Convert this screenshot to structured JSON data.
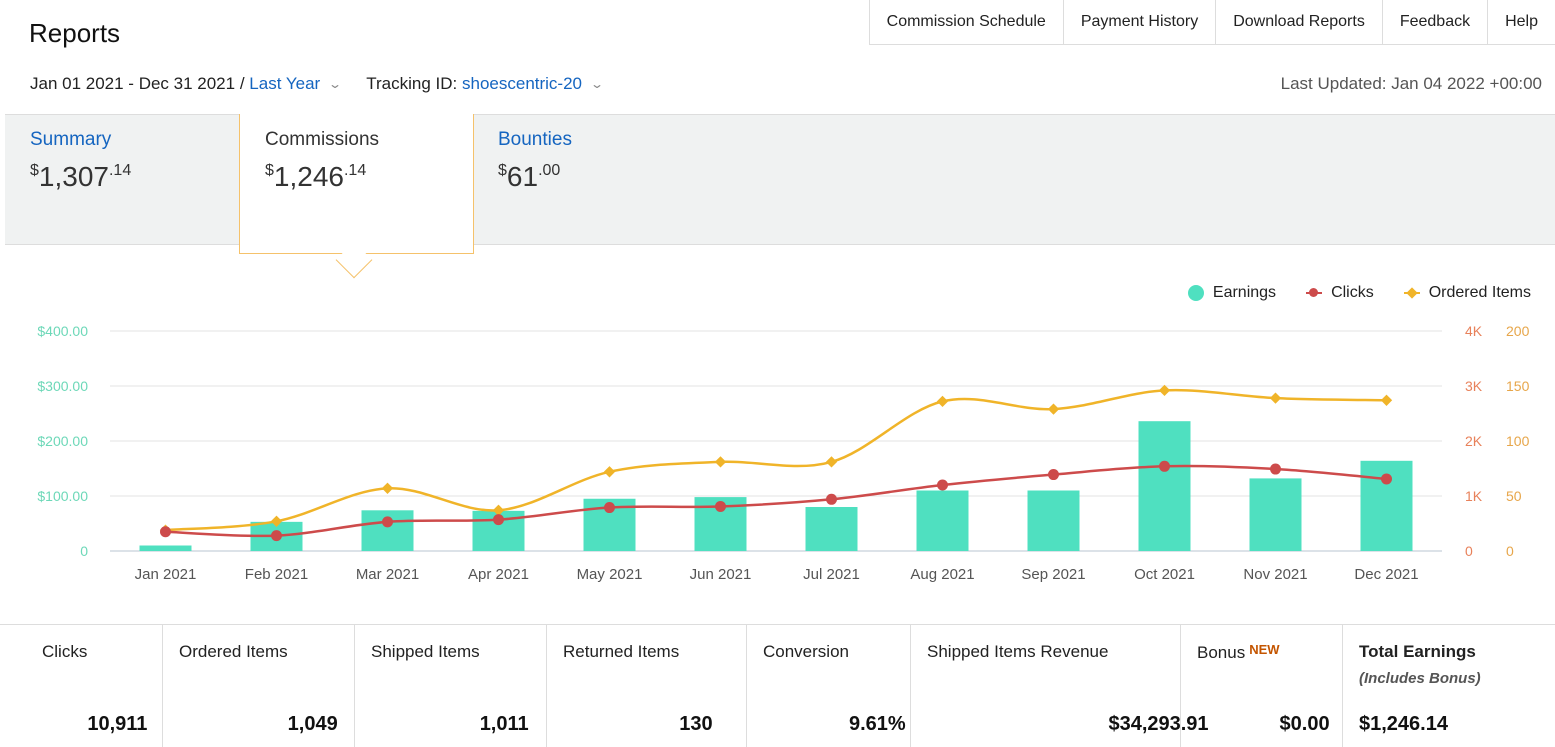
{
  "header": {
    "title": "Reports",
    "nav": [
      "Commission Schedule",
      "Payment History",
      "Download Reports",
      "Feedback",
      "Help"
    ],
    "date_range": "Jan 01 2021 - Dec 31 2021 /",
    "period_link": "Last Year",
    "tracking_label": "Tracking ID:",
    "tracking_id": "shoescentric-20",
    "last_updated": "Last Updated: Jan 04 2022 +00:00"
  },
  "tabs": [
    {
      "label": "Summary",
      "currency": "$",
      "whole": "1,307",
      "cents": ".14"
    },
    {
      "label": "Commissions",
      "currency": "$",
      "whole": "1,246",
      "cents": ".14"
    },
    {
      "label": "Bounties",
      "currency": "$",
      "whole": "61",
      "cents": ".00"
    }
  ],
  "chart_data": {
    "type": "bar",
    "categories": [
      "Jan 2021",
      "Feb 2021",
      "Mar 2021",
      "Apr 2021",
      "May 2021",
      "Jun 2021",
      "Jul 2021",
      "Aug 2021",
      "Sep 2021",
      "Oct 2021",
      "Nov 2021",
      "Dec 2021"
    ],
    "series": [
      {
        "name": "Earnings",
        "type": "bar",
        "axis": "left",
        "color": "#4fe0c0",
        "values": [
          10,
          53,
          74,
          73,
          95,
          98,
          80,
          110,
          110,
          236,
          132,
          164
        ]
      },
      {
        "name": "Clicks",
        "type": "line",
        "axis": "right-1",
        "color": "#cd4b4b",
        "values": [
          350,
          280,
          530,
          570,
          790,
          810,
          940,
          1200,
          1390,
          1540,
          1490,
          1310
        ]
      },
      {
        "name": "Ordered Items",
        "type": "line",
        "axis": "right-2",
        "color": "#f0b429",
        "values": [
          19,
          27,
          57,
          37,
          72,
          81,
          81,
          136,
          129,
          146,
          139,
          137
        ]
      }
    ],
    "left_axis": {
      "ticks": [
        "0",
        "$100.00",
        "$200.00",
        "$300.00",
        "$400.00"
      ],
      "range": [
        0,
        400
      ],
      "color": "#6dd8b8"
    },
    "right_axis_1": {
      "ticks": [
        "0",
        "1K",
        "2K",
        "3K",
        "4K"
      ],
      "range": [
        0,
        4000
      ],
      "color": "#e8815a"
    },
    "right_axis_2": {
      "ticks": [
        "0",
        "50",
        "100",
        "150",
        "200"
      ],
      "range": [
        0,
        200
      ],
      "color": "#e7a64a"
    },
    "legend": [
      "Earnings",
      "Clicks",
      "Ordered Items"
    ],
    "legend_position": "top-right",
    "grid": true
  },
  "stats": [
    {
      "label": "Clicks",
      "value": "10,911"
    },
    {
      "label": "Ordered Items",
      "value": "1,049"
    },
    {
      "label": "Shipped Items",
      "value": "1,011"
    },
    {
      "label": "Returned Items",
      "value": "130"
    },
    {
      "label": "Conversion",
      "value": "9.61%"
    },
    {
      "label": "Shipped Items Revenue",
      "value": "$34,293.91"
    },
    {
      "label": "Bonus",
      "badge": "NEW",
      "value": "$0.00"
    },
    {
      "label": "Total Earnings",
      "sub": "(Includes Bonus)",
      "value": "$1,246.14"
    }
  ]
}
